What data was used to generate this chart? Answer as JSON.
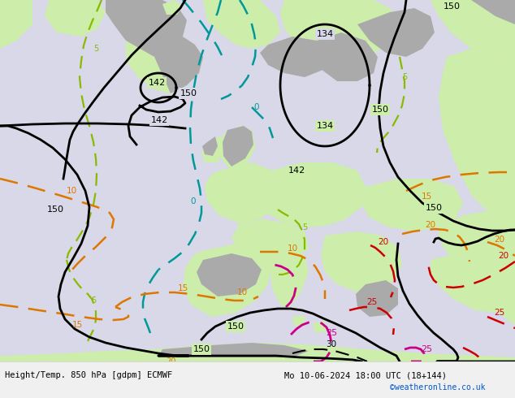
{
  "title_left": "Height/Temp. 850 hPa [gdpm] ECMWF",
  "title_right": "Mo 10-06-2024 18:00 UTC (18+144)",
  "credit": "©weatheronline.co.uk",
  "sea_color": "#d8d8e8",
  "land_green": "#cceeaa",
  "land_gray": "#aaaaaa",
  "text_color": "#000000",
  "credit_color": "#0055cc",
  "figsize": [
    6.34,
    4.9
  ],
  "dpi": 100
}
